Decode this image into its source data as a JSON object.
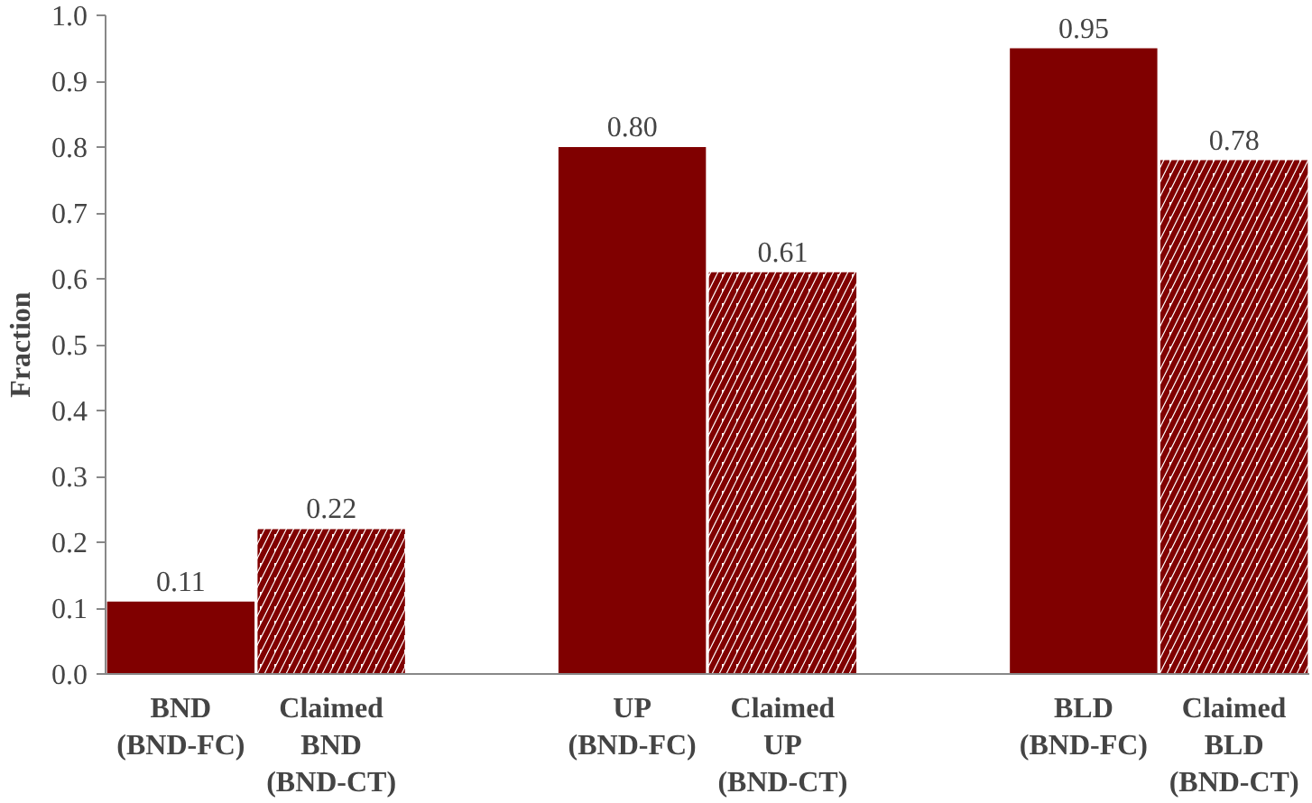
{
  "chart_data": {
    "type": "bar",
    "ylabel": "Fraction",
    "categories": [
      "BND (BND-FC)",
      "Claimed BND (BND-CT)",
      null,
      "UP (BND-FC)",
      "Claimed UP (BND-CT)",
      null,
      "BLD (BND-FC)",
      "Claimed BLD (BND-CT)"
    ],
    "series": [
      {
        "color": "#800000",
        "values": [
          0.11,
          null,
          null,
          0.8,
          null,
          null,
          0.95,
          null
        ],
        "value_labels": [
          "0.11",
          null,
          null,
          "0.80",
          null,
          null,
          "0.95",
          null
        ]
      },
      {
        "color": "#800000",
        "values": [
          null,
          0.22,
          null,
          null,
          0.61,
          null,
          null,
          0.78
        ],
        "value_labels": [
          null,
          "0.22",
          null,
          null,
          "0.61",
          null,
          null,
          "0.78"
        ]
      }
    ],
    "ylim": [
      0,
      1
    ],
    "yticks": [
      {
        "value": 0,
        "label": "0.0"
      },
      0.1,
      0.2,
      0.3,
      0.4,
      0.5,
      0.6,
      0.7,
      0.8,
      0.9,
      {
        "value": 1,
        "label": "1.0"
      }
    ],
    "grid": false
  }
}
